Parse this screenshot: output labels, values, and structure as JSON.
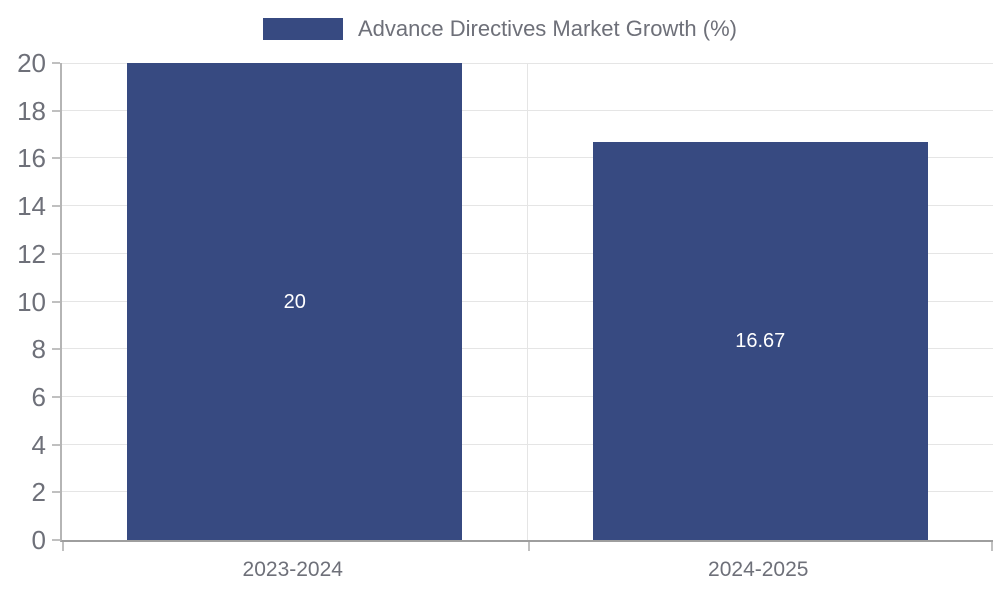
{
  "chart_data": {
    "type": "bar",
    "title": "Advance Directives Market Growth (%)",
    "legend": {
      "label": "Advance Directives Market Growth (%)",
      "position": "top-center"
    },
    "categories": [
      "2023-2024",
      "2024-2025"
    ],
    "values": [
      20,
      16.67
    ],
    "value_labels": [
      "20",
      "16.67"
    ],
    "xlabel": "",
    "ylabel": "",
    "ylim": [
      0,
      20
    ],
    "ytick_step": 2,
    "grid": true,
    "layout": {
      "bar_width_frac": 0.72
    },
    "colors": {
      "bar": "#374a81",
      "value_label_text": "#ffffff",
      "axis_text": "#6e7079",
      "gridline": "#e5e5e5",
      "tick": "#c0c0c0"
    }
  }
}
